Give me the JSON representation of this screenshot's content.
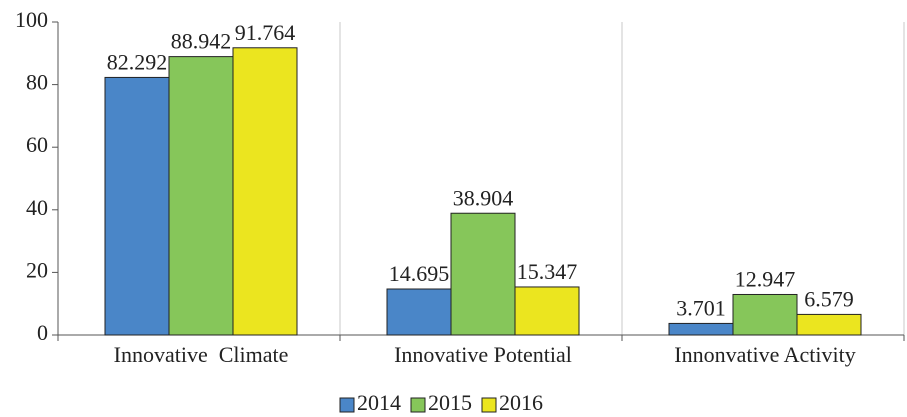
{
  "chart_data": {
    "type": "bar",
    "categories": [
      "Innovative  Climate",
      "Innovative Potential",
      "Innonvative Activity"
    ],
    "series": [
      {
        "name": "2014",
        "color": "#4a86c8",
        "values": [
          82.292,
          14.695,
          3.701
        ]
      },
      {
        "name": "2015",
        "color": "#86c65a",
        "values": [
          88.942,
          38.904,
          12.947
        ]
      },
      {
        "name": "2016",
        "color": "#ebe51f",
        "values": [
          91.764,
          15.347,
          6.579
        ]
      }
    ],
    "ylim": [
      0,
      100
    ],
    "yticks": [
      0,
      20,
      40,
      60,
      80,
      100
    ],
    "grid": true,
    "legend": "bottom"
  }
}
